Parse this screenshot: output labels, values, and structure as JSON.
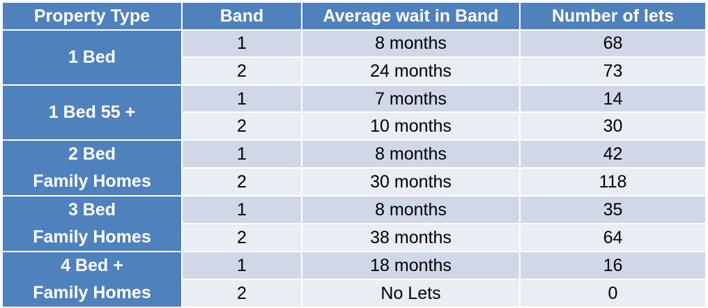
{
  "headers": {
    "property_type": "Property Type",
    "band": "Band",
    "average_wait": "Average wait in Band",
    "number_of_lets": "Number of lets"
  },
  "groups": [
    {
      "property_type": [
        "1 Bed"
      ],
      "rows": [
        {
          "band": "1",
          "wait": "8 months",
          "lets": "68"
        },
        {
          "band": "2",
          "wait": "24 months",
          "lets": "73"
        }
      ]
    },
    {
      "property_type": [
        "1 Bed 55 +"
      ],
      "rows": [
        {
          "band": "1",
          "wait": "7 months",
          "lets": "14"
        },
        {
          "band": "2",
          "wait": "10 months",
          "lets": "30"
        }
      ]
    },
    {
      "property_type": [
        "2 Bed",
        "Family Homes"
      ],
      "rows": [
        {
          "band": "1",
          "wait": "8 months",
          "lets": "42"
        },
        {
          "band": "2",
          "wait": "30 months",
          "lets": "118"
        }
      ]
    },
    {
      "property_type": [
        "3 Bed",
        "Family Homes"
      ],
      "rows": [
        {
          "band": "1",
          "wait": "8 months",
          "lets": "35"
        },
        {
          "band": "2",
          "wait": "38 months",
          "lets": "64"
        }
      ]
    },
    {
      "property_type": [
        "4 Bed +",
        "Family Homes"
      ],
      "rows": [
        {
          "band": "1",
          "wait": "18 months",
          "lets": "16"
        },
        {
          "band": "2",
          "wait": "No Lets",
          "lets": "0"
        }
      ]
    }
  ],
  "colors": {
    "header_bg": "#4f81bd",
    "row_odd_bg": "#d0d8e8",
    "row_even_bg": "#e9edf4"
  }
}
